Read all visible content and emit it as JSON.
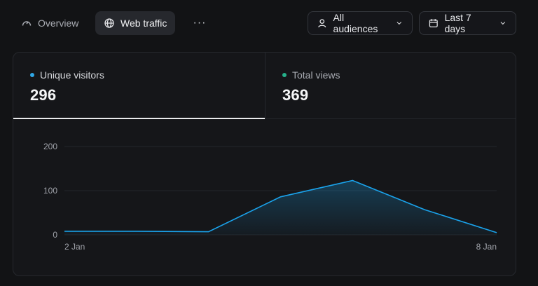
{
  "tabs": [
    {
      "label": "Overview",
      "icon": "gauge-icon",
      "active": false
    },
    {
      "label": "Web traffic",
      "icon": "globe-icon",
      "active": true
    }
  ],
  "more_label": "···",
  "audience": {
    "label": "All audiences",
    "icon": "user-icon"
  },
  "date_range": {
    "label": "Last 7 days",
    "icon": "calendar-icon"
  },
  "metrics": [
    {
      "label": "Unique visitors",
      "value": "296",
      "color": "#2fa7e6"
    },
    {
      "label": "Total views",
      "value": "369",
      "color": "#25b08a"
    }
  ],
  "chart_data": {
    "type": "area",
    "series_color": "#1aa3ec",
    "x_tick_labels": [
      "2 Jan",
      "8 Jan"
    ],
    "y_ticks": [
      0,
      100,
      200
    ],
    "ylim": [
      0,
      200
    ],
    "grid": true,
    "x": [
      0,
      1,
      2,
      3,
      4,
      5,
      6
    ],
    "values": [
      8,
      8,
      7,
      86,
      123,
      57,
      5
    ]
  }
}
